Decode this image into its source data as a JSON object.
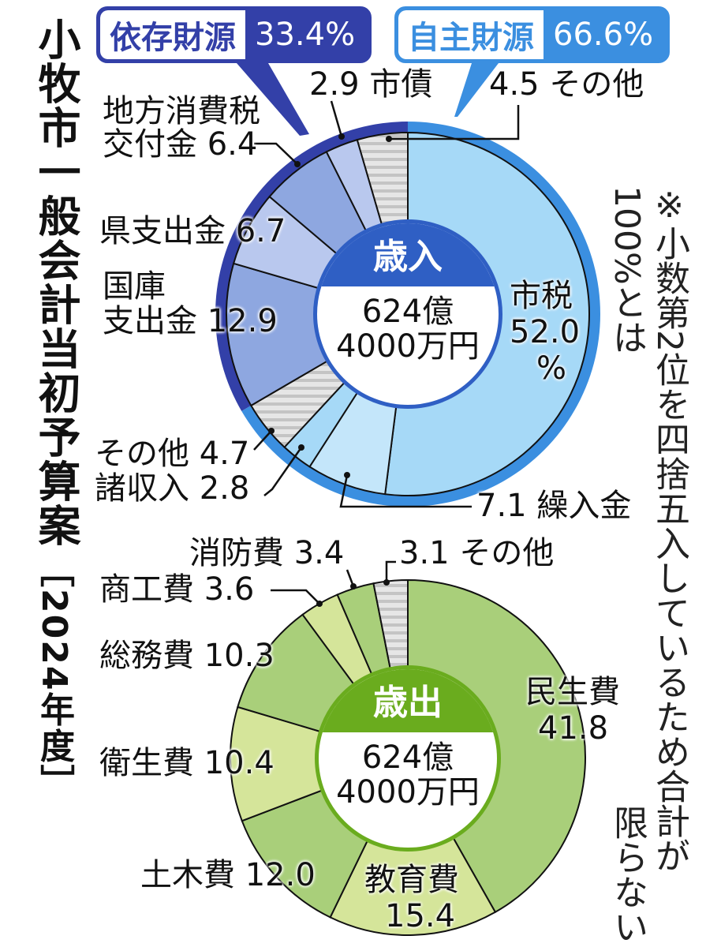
{
  "title": "小牧市一般会計当初予算案",
  "title_year": "［2024年度］",
  "note": "※小数第2位を四捨五入しているため合計が100%とは",
  "note_end": "限らない",
  "badges": {
    "dependent": {
      "label": "依存財源",
      "value": "33.4%",
      "color": "#3340a8"
    },
    "independent": {
      "label": "自主財源",
      "value": "66.6%",
      "color": "#3b8fe0"
    }
  },
  "revenue_center": {
    "header": "歳入",
    "amount_line1": "624億",
    "amount_line2": "4000万円",
    "header_color": "#2f5fc4"
  },
  "expenditure_center": {
    "header": "歳出",
    "amount_line1": "624億",
    "amount_line2": "4000万円",
    "header_color": "#6aac1e"
  },
  "labels": {
    "shisai": "2.9 市債",
    "sonota_top": "4.5 その他",
    "chiho_1": "地方消費税",
    "chiho_2": "交付金 6.4",
    "ken": "県支出金 6.7",
    "kokko_1": "国庫",
    "kokko_2": "支出金 12.9",
    "shizei_1": "市税",
    "shizei_2": "52.0",
    "shizei_3": "%",
    "sonota_left": "その他 4.7",
    "shoshunyu": "諸収入 2.8",
    "kurire": "7.1 繰入金",
    "shobo": "消防費 3.4",
    "sonota_exp": "3.1 その他",
    "shoko": "商工費 3.6",
    "somu": "総務費 10.3",
    "minsei_1": "民生費",
    "minsei_2": "41.8",
    "eisei": "衛生費 10.4",
    "doboku": "土木費 12.0",
    "kyoiku_1": "教育費",
    "kyoiku_2": "15.4"
  },
  "chart_data": [
    {
      "type": "pie",
      "title": "歳入 624億4000万円",
      "unit": "%",
      "groups": [
        {
          "name": "自主財源",
          "value": 66.6
        },
        {
          "name": "依存財源",
          "value": 33.4
        }
      ],
      "categories": [
        "市税",
        "繰入金",
        "諸収入",
        "その他(自主)",
        "国庫支出金",
        "県支出金",
        "地方消費税交付金",
        "市債",
        "その他(依存)"
      ],
      "values": [
        52.0,
        7.1,
        2.8,
        4.7,
        12.9,
        6.7,
        6.4,
        2.9,
        4.5
      ],
      "group_of": [
        "自主財源",
        "自主財源",
        "自主財源",
        "自主財源",
        "依存財源",
        "依存財源",
        "依存財源",
        "依存財源",
        "依存財源"
      ],
      "colors": [
        "#a6d9f7",
        "#c4e6fa",
        "#a6d9f7",
        "hatch",
        "#8ea7e0",
        "#b9c8ee",
        "#8ea7e0",
        "#b9c8ee",
        "hatch"
      ]
    },
    {
      "type": "pie",
      "title": "歳出 624億4000万円",
      "unit": "%",
      "categories": [
        "民生費",
        "教育費",
        "土木費",
        "衛生費",
        "総務費",
        "商工費",
        "消防費",
        "その他"
      ],
      "values": [
        41.8,
        15.4,
        12.0,
        10.4,
        10.3,
        3.6,
        3.4,
        3.1
      ],
      "colors": [
        "#a9cf7a",
        "#d5e59a",
        "#a9cf7a",
        "#d5e59a",
        "#a9cf7a",
        "#d5e59a",
        "#a9cf7a",
        "hatch"
      ]
    }
  ]
}
